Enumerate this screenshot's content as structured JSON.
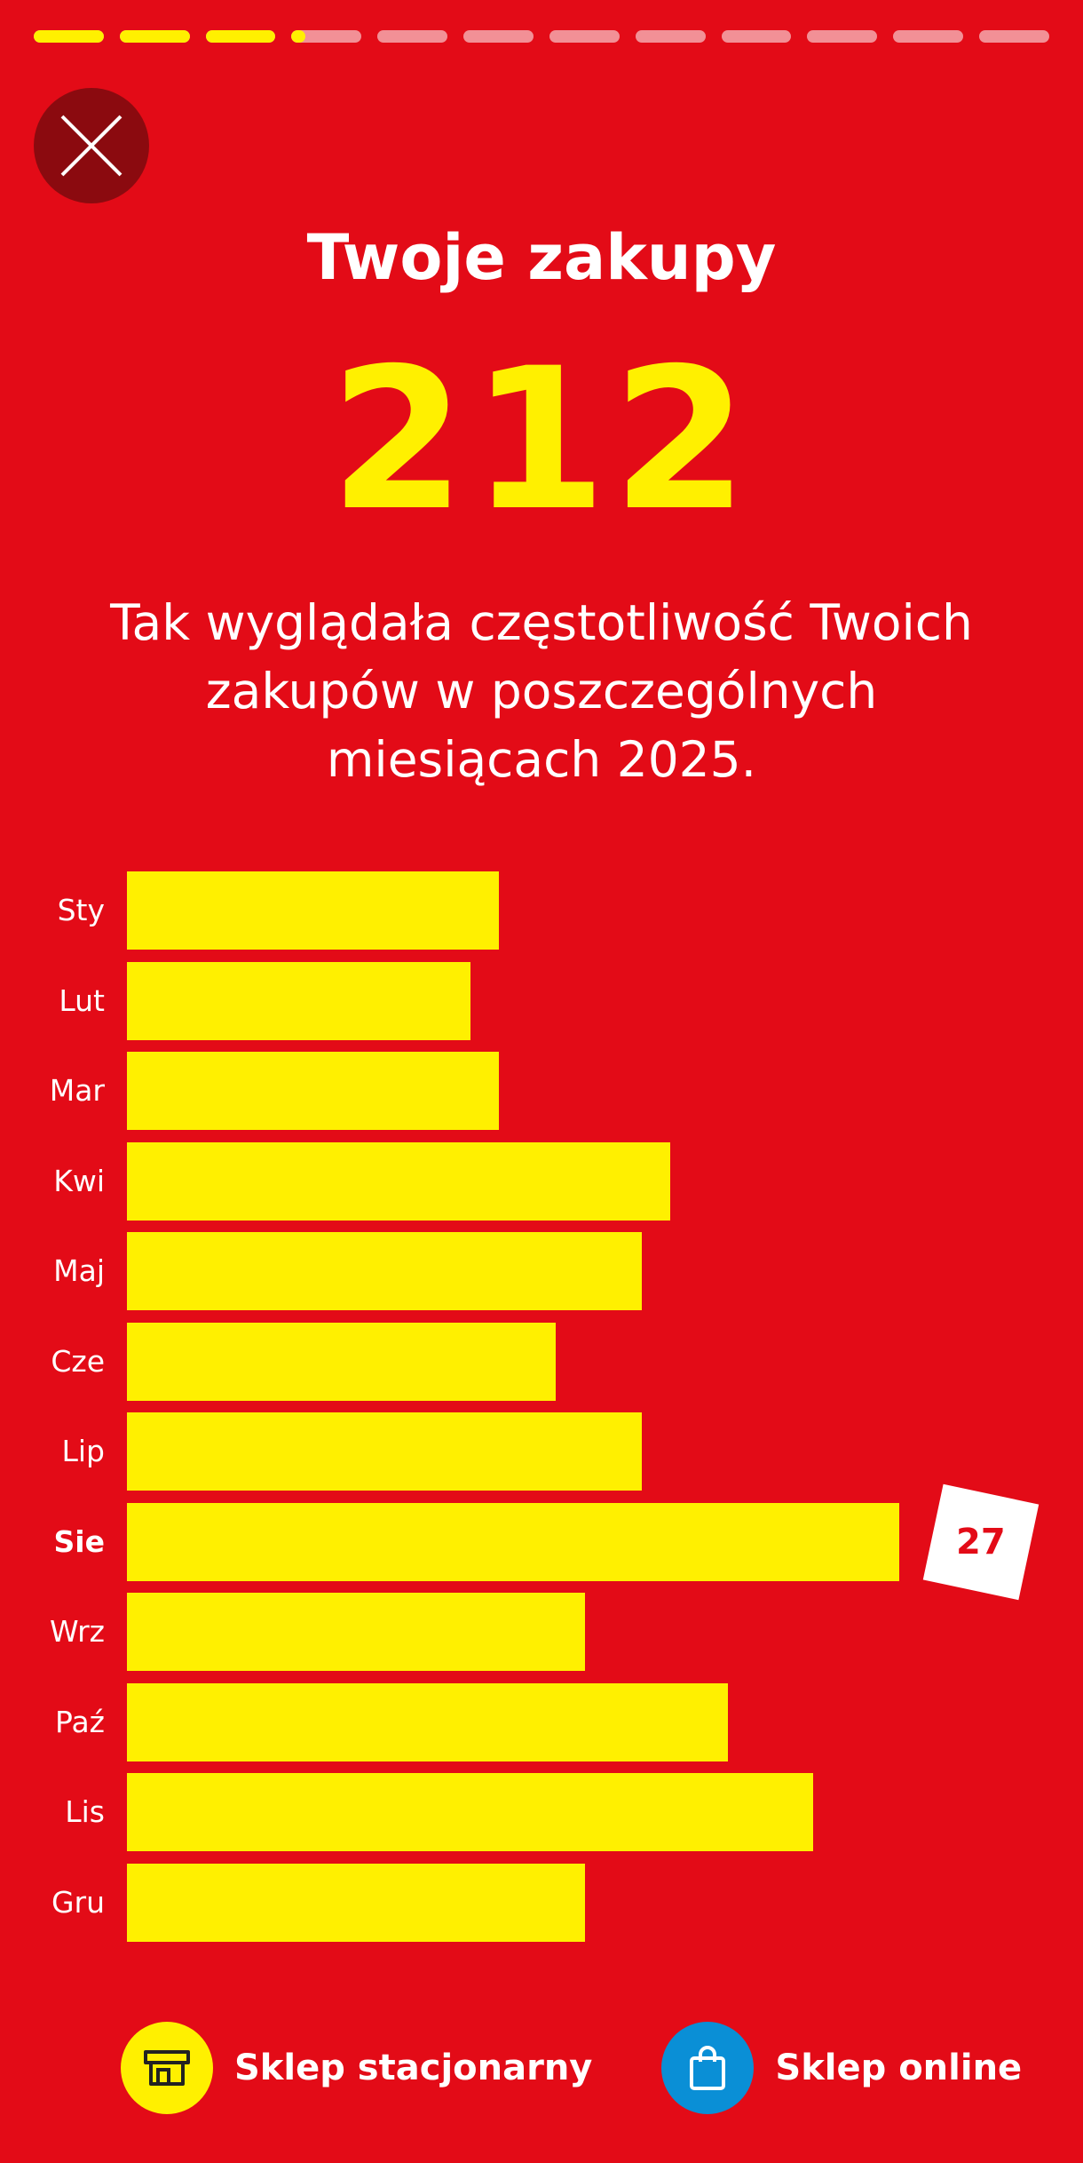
{
  "progress": {
    "segments": 12,
    "completed": 3,
    "current_fill": 0.2
  },
  "header": {
    "close_icon": "close-icon",
    "title": "Twoje zakupy"
  },
  "total": {
    "value": "212"
  },
  "description": "Tak wyglądała częstotliwość Twoich zakupów w poszczególnych miesiącach 2025.",
  "chart_data": {
    "type": "bar",
    "orientation": "horizontal",
    "categories": [
      "Sty",
      "Lut",
      "Mar",
      "Kwi",
      "Maj",
      "Cze",
      "Lip",
      "Sie",
      "Wrz",
      "Paź",
      "Lis",
      "Gru"
    ],
    "values": [
      13,
      12,
      13,
      19,
      18,
      15,
      18,
      27,
      16,
      21,
      24,
      16
    ],
    "highlight": {
      "category": "Sie",
      "label": "27"
    },
    "xlim": [
      0,
      27
    ],
    "grid": false,
    "bar_color": "#fff000"
  },
  "legend": {
    "items": [
      {
        "label": "Sklep stacjonarny",
        "icon": "store-icon",
        "color": "#fff000"
      },
      {
        "label": "Sklep online",
        "icon": "shopping-bag-icon",
        "color": "#0a8fd6"
      }
    ]
  },
  "colors": {
    "background": "#e30b17",
    "accent": "#fff000",
    "close_button": "#8b0a0f"
  }
}
